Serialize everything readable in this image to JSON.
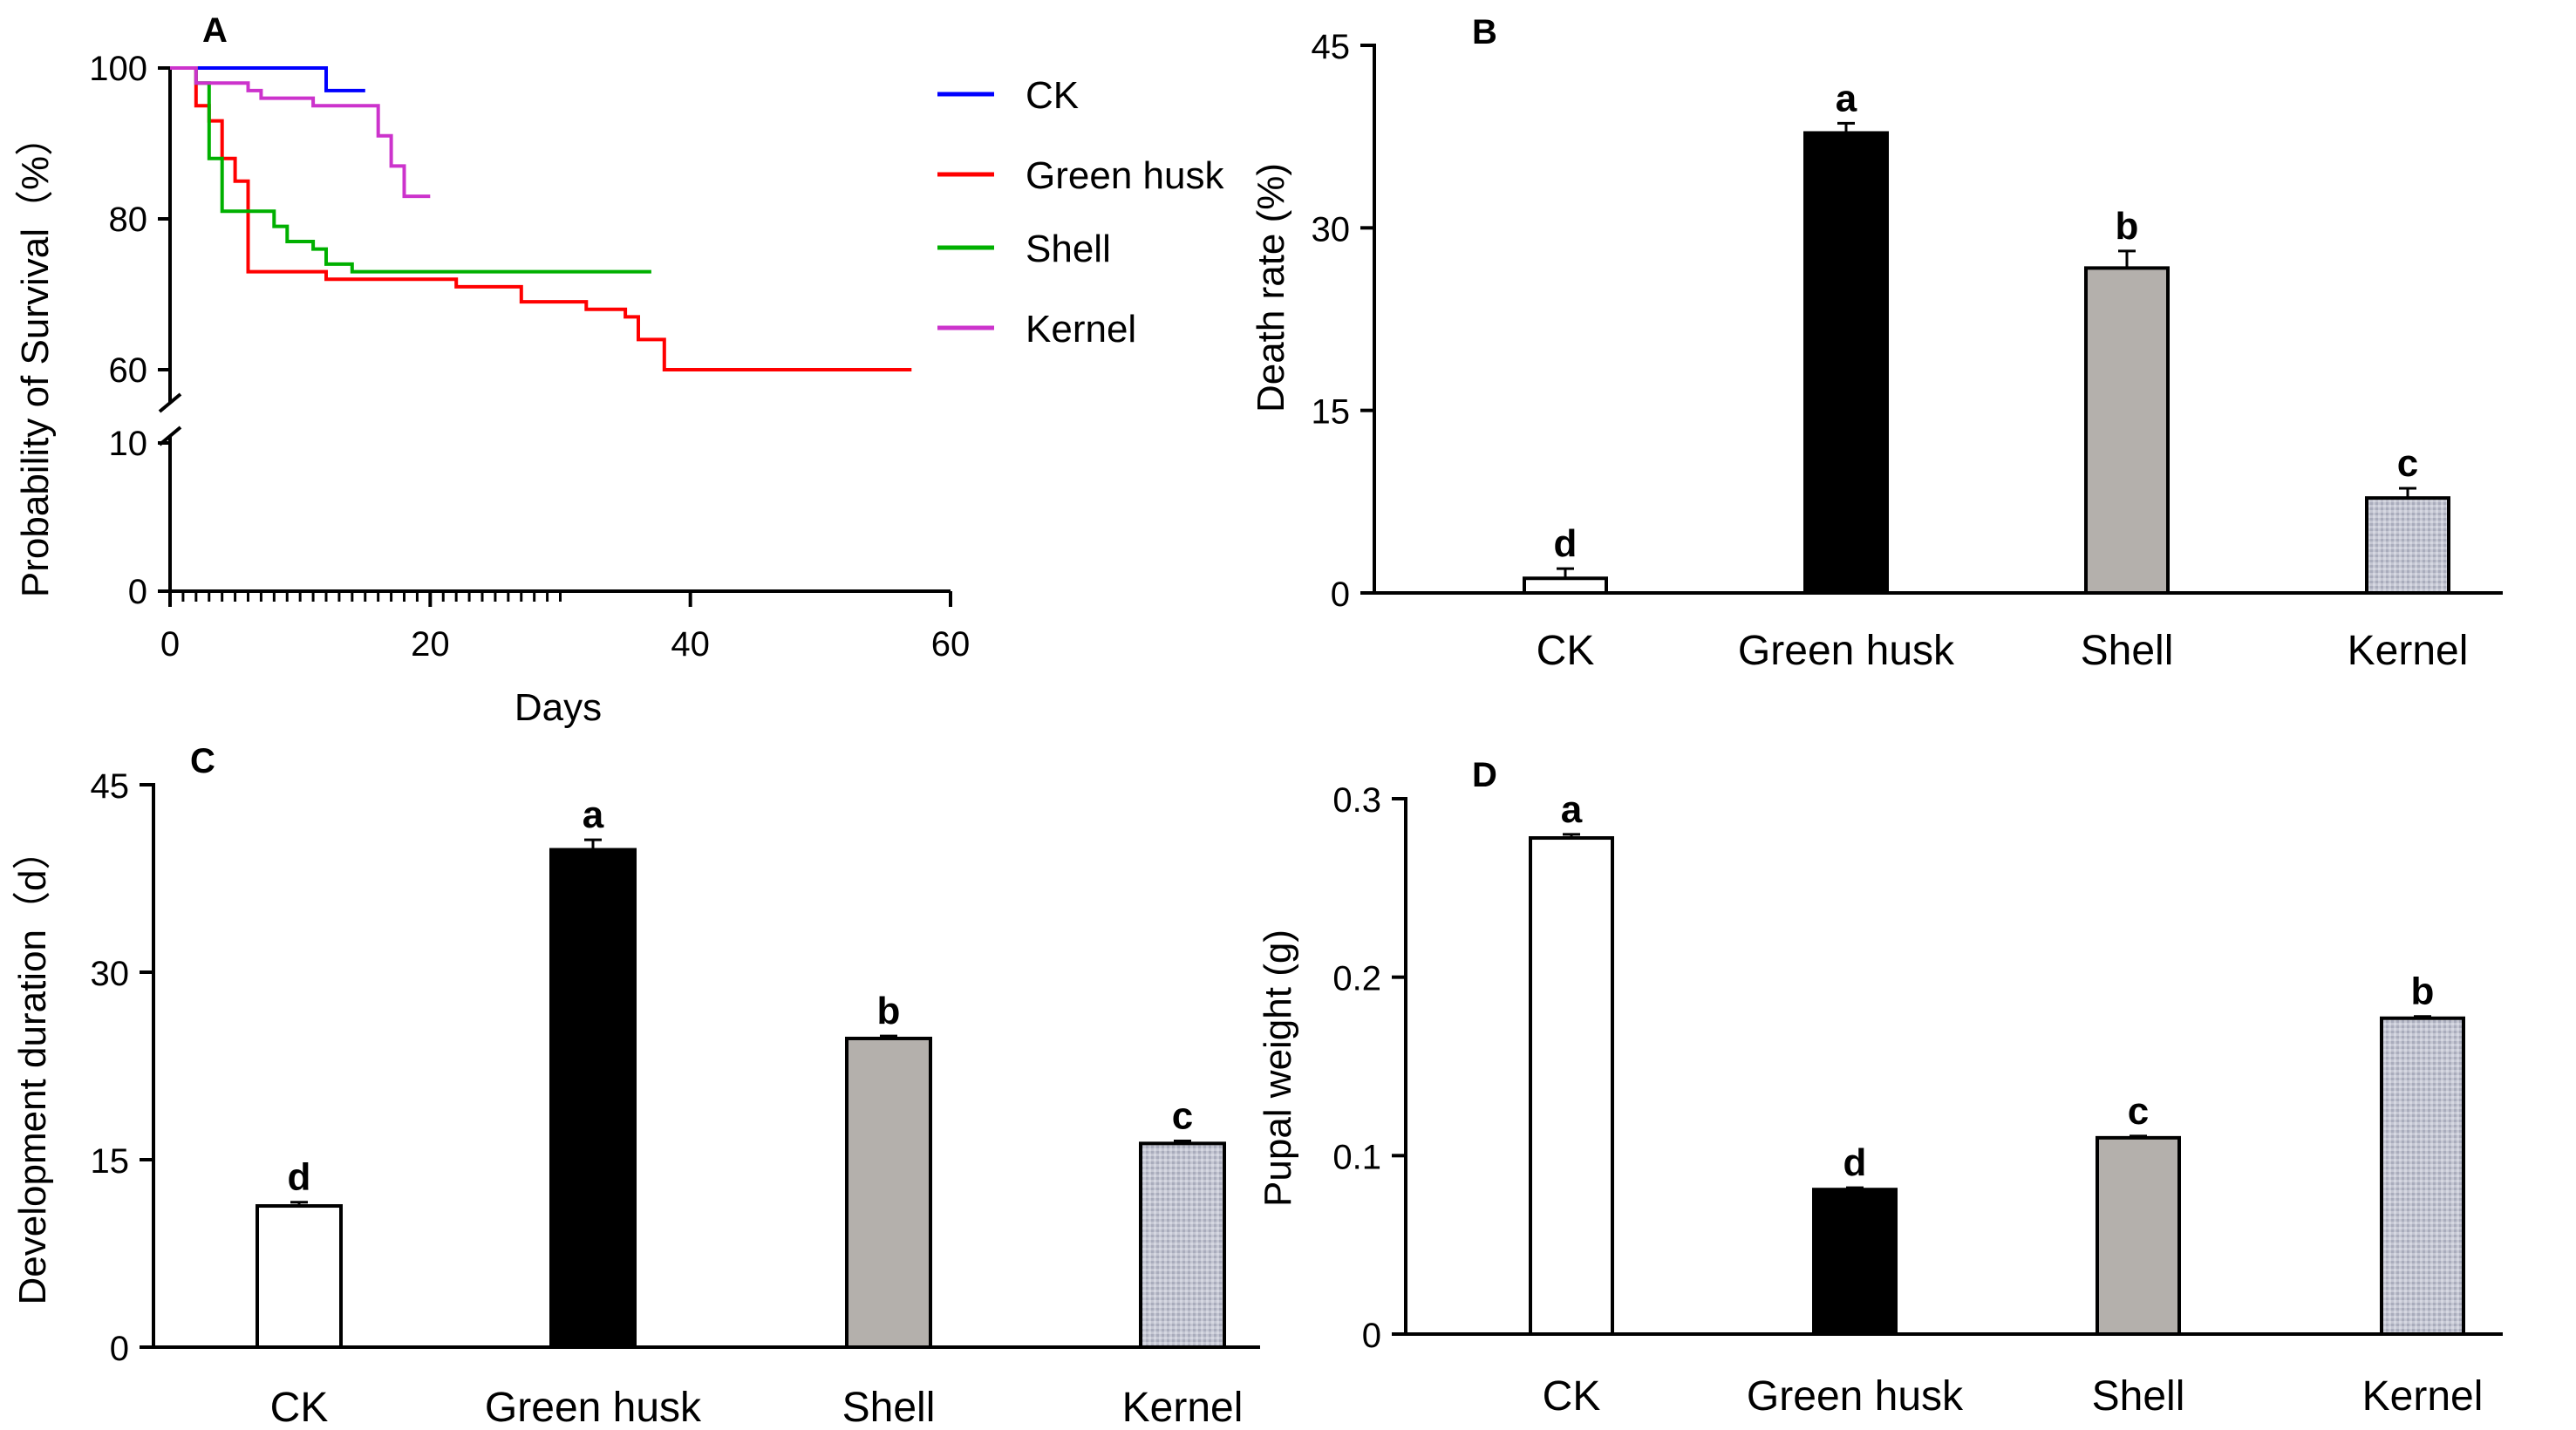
{
  "colors": {
    "ck": "#0000ff",
    "green_husk": "#ff0000",
    "shell": "#00b000",
    "kernel": "#cc33cc",
    "bar_ck": "#ffffff",
    "bar_green_husk": "#000000",
    "bar_shell": "#b4b0ac",
    "bar_kernel": "#b8bcc8"
  },
  "chart_data": [
    {
      "panel": "A",
      "type": "line",
      "title": "",
      "xlabel": "Days",
      "ylabel": "Probability of Survival（%）",
      "xlim": [
        0,
        60
      ],
      "x_ticks": [
        "0",
        "20",
        "40",
        "60"
      ],
      "y_ticks_upper": [
        "60",
        "80",
        "100"
      ],
      "y_ticks_lower": [
        "0",
        "10"
      ],
      "y_break": [
        10,
        60
      ],
      "legend_position": "right",
      "series": [
        {
          "name": "CK",
          "x": [
            0,
            12,
            12,
            15
          ],
          "y": [
            100,
            100,
            97,
            97
          ]
        },
        {
          "name": "Green husk",
          "x": [
            0,
            2,
            2,
            3,
            3,
            4,
            4,
            5,
            5,
            6,
            6,
            12,
            12,
            22,
            22,
            27,
            27,
            32,
            32,
            35,
            35,
            36,
            36,
            38,
            38,
            57
          ],
          "y": [
            100,
            100,
            95,
            95,
            93,
            93,
            88,
            88,
            85,
            85,
            73,
            73,
            72,
            72,
            71,
            71,
            69,
            69,
            68,
            68,
            67,
            67,
            64,
            64,
            60,
            60
          ]
        },
        {
          "name": "Shell",
          "x": [
            0,
            2,
            2,
            3,
            3,
            4,
            4,
            8,
            8,
            9,
            9,
            11,
            11,
            12,
            12,
            14,
            14,
            37
          ],
          "y": [
            100,
            100,
            98,
            98,
            88,
            88,
            81,
            81,
            79,
            79,
            77,
            77,
            76,
            76,
            74,
            74,
            73,
            73
          ]
        },
        {
          "name": "Kernel",
          "x": [
            0,
            2,
            2,
            6,
            6,
            7,
            7,
            11,
            11,
            16,
            16,
            17,
            17,
            18,
            18,
            20
          ],
          "y": [
            100,
            100,
            98,
            98,
            97,
            97,
            96,
            96,
            95,
            95,
            91,
            91,
            87,
            87,
            83,
            83
          ]
        }
      ]
    },
    {
      "panel": "B",
      "type": "bar",
      "title": "",
      "xlabel": "",
      "ylabel": "Death rate (%)",
      "ylim": [
        0,
        45
      ],
      "y_ticks": [
        "0",
        "15",
        "30",
        "45"
      ],
      "categories": [
        "CK",
        "Green husk",
        "Shell",
        "Kernel"
      ],
      "values": [
        1.2,
        37.8,
        26.7,
        7.8
      ],
      "errors": [
        0.8,
        0.8,
        1.4,
        0.8
      ],
      "significance": [
        "d",
        "a",
        "b",
        "c"
      ]
    },
    {
      "panel": "C",
      "type": "bar",
      "title": "",
      "xlabel": "",
      "ylabel": "Development duration（d）",
      "ylim": [
        0,
        45
      ],
      "y_ticks": [
        "0",
        "15",
        "30",
        "45"
      ],
      "categories": [
        "CK",
        "Green husk",
        "Shell",
        "Kernel"
      ],
      "values": [
        11.3,
        39.8,
        24.7,
        16.3
      ],
      "errors": [
        0.3,
        0.8,
        0.2,
        0.2
      ],
      "significance": [
        "d",
        "a",
        "b",
        "c"
      ]
    },
    {
      "panel": "D",
      "type": "bar",
      "title": "",
      "xlabel": "",
      "ylabel": "Pupal weight (g)",
      "ylim": [
        0,
        0.3
      ],
      "y_ticks": [
        "0",
        "0.1",
        "0.2",
        "0.3"
      ],
      "categories": [
        "CK",
        "Green husk",
        "Shell",
        "Kernel"
      ],
      "values": [
        0.278,
        0.081,
        0.11,
        0.177
      ],
      "errors": [
        0.002,
        0.001,
        0.001,
        0.001
      ],
      "significance": [
        "a",
        "d",
        "c",
        "b"
      ]
    }
  ]
}
